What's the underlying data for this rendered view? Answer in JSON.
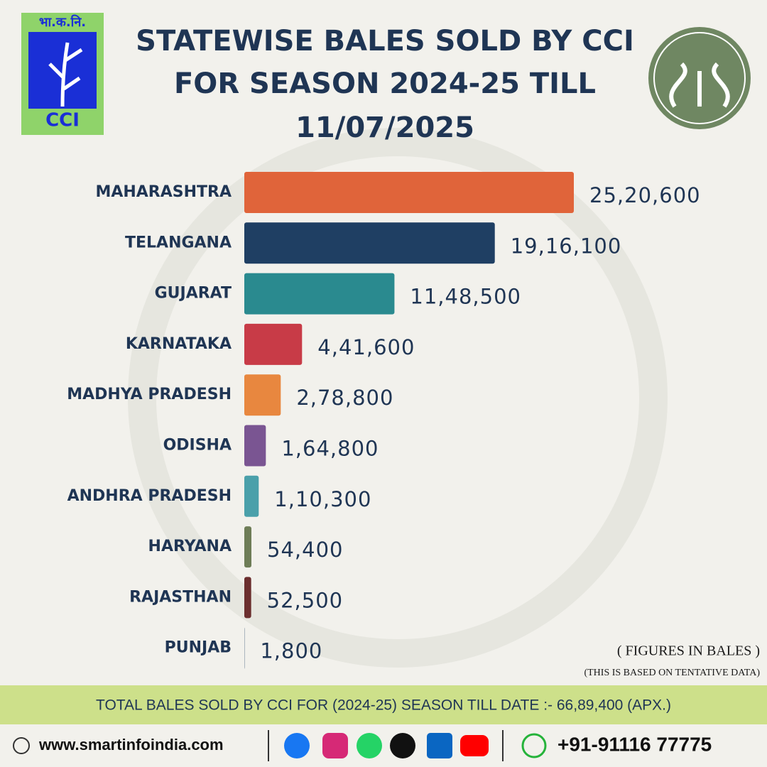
{
  "chart_data": {
    "type": "hbar",
    "title_lines": [
      "STATEWISE BALES SOLD BY CCI",
      "FOR SEASON 2024-25 TILL",
      "11/07/2025"
    ],
    "logo_text": [
      "भा.क.नि.",
      "CCI"
    ],
    "categories": [
      "MAHARASHTRA",
      "TELANGANA",
      "GUJARAT",
      "KARNATAKA",
      "MADHYA PRADESH",
      "ODISHA",
      "ANDHRA PRADESH",
      "HARYANA",
      "RAJASTHAN",
      "PUNJAB"
    ],
    "values": [
      2520600,
      1916100,
      1148500,
      441600,
      278800,
      164800,
      110300,
      54400,
      52500,
      1800
    ],
    "value_labels": [
      "25,20,600",
      "19,16,100",
      "11,48,500",
      "4,41,600",
      "2,78,800",
      "1,64,800",
      "1,10,300",
      "54,400",
      "52,500",
      "1,800"
    ],
    "colors": [
      "#e0643a",
      "#1f3f63",
      "#2a8a8f",
      "#c83b47",
      "#e8873f",
      "#7a5592",
      "#4aa0aa",
      "#6e7d57",
      "#6b2e2e",
      "#1f3f63"
    ],
    "notes": [
      "( FIGURES IN BALES )",
      "(THIS IS BASED ON TENTATIVE DATA)"
    ],
    "total_banner": "TOTAL BALES SOLD BY CCI FOR (2024-25) SEASON TILL DATE :- 66,89,400 (APX.)",
    "website": "www.smartinfoindia.com",
    "phone": "+91-91116 77775"
  }
}
